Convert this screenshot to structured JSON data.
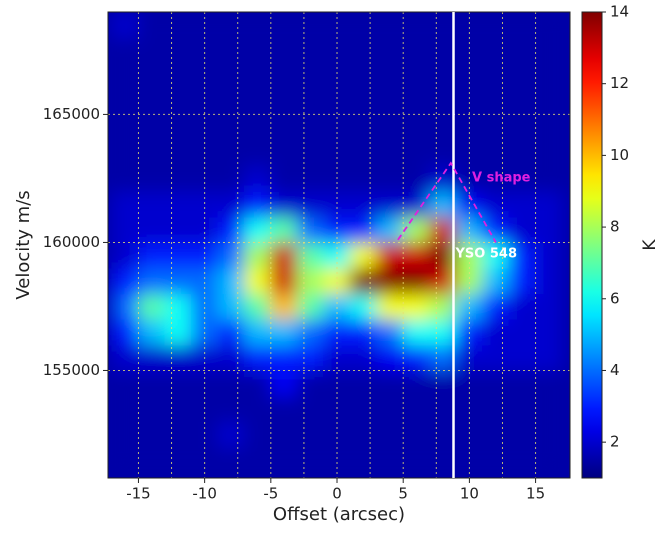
{
  "chart_data": {
    "type": "heatmap",
    "xlabel": "Offset (arcsec)",
    "ylabel": "Velocity m/s",
    "colorbar_label": "K",
    "xlim": [
      -17.3,
      17.6
    ],
    "ylim": [
      150800,
      169000
    ],
    "zlim": [
      1,
      14
    ],
    "xticks": [
      -15,
      -10,
      -5,
      0,
      5,
      10,
      15
    ],
    "x_minor_grid": [
      -12.5,
      -7.5,
      -2.5,
      2.5,
      7.5,
      12.5
    ],
    "yticks": [
      155000,
      160000,
      165000
    ],
    "zticks": [
      2,
      4,
      6,
      8,
      10,
      12,
      14
    ],
    "grid": true,
    "colormap": "jet",
    "x": [
      -16,
      -14,
      -12,
      -10,
      -8,
      -6,
      -4,
      -2,
      0,
      2,
      4,
      6,
      8,
      10,
      12,
      14,
      16
    ],
    "y": [
      151500,
      152500,
      153500,
      154500,
      155500,
      156500,
      157500,
      158500,
      159500,
      160500,
      161500,
      162500,
      163500,
      164500,
      165500,
      166500,
      167500,
      168500
    ],
    "z": [
      [
        1.5,
        1.5,
        1.5,
        1.5,
        1.5,
        1.5,
        1.5,
        1.5,
        1.5,
        1.5,
        1.5,
        1.5,
        1.5,
        1.5,
        1.5,
        1.5,
        1.5
      ],
      [
        1.5,
        1.5,
        1.5,
        1.5,
        2,
        1.5,
        1.5,
        1.5,
        1.5,
        1.5,
        1.5,
        1.5,
        1.5,
        1.5,
        1.5,
        1.5,
        1.5
      ],
      [
        1.5,
        1.5,
        1.5,
        1.5,
        1.5,
        1.5,
        1.5,
        1.5,
        1.5,
        1.5,
        1.5,
        1.5,
        1.5,
        1.5,
        1.5,
        1.5,
        1.5
      ],
      [
        1.5,
        1.5,
        1.5,
        1.5,
        1.5,
        1.5,
        2.5,
        1.5,
        1.5,
        1.5,
        1.5,
        1.5,
        1.5,
        1.5,
        1.5,
        1.5,
        1.5
      ],
      [
        2,
        2,
        2,
        2,
        2,
        3,
        3,
        3,
        2,
        2,
        2.5,
        3,
        4,
        2,
        2,
        2,
        2
      ],
      [
        3,
        5,
        6,
        4,
        3,
        5,
        5,
        4,
        3,
        3,
        4,
        6,
        6,
        3,
        2,
        2,
        2
      ],
      [
        4,
        7,
        6,
        4,
        5,
        7,
        10,
        7,
        5,
        6,
        9,
        9,
        8,
        5,
        3,
        2,
        2
      ],
      [
        3,
        4,
        4,
        4,
        5,
        9,
        13,
        8,
        9,
        14,
        14,
        14,
        13,
        8,
        5,
        3,
        2
      ],
      [
        2,
        3,
        3,
        3,
        4,
        8,
        13,
        7,
        6,
        9,
        13,
        13,
        14,
        8,
        6,
        3,
        2
      ],
      [
        2,
        2,
        2,
        2,
        3,
        6,
        7,
        4,
        3,
        3,
        5,
        8,
        13,
        5,
        3,
        2,
        2
      ],
      [
        2,
        2,
        2,
        2,
        2,
        3,
        2,
        2,
        2,
        2,
        2,
        2,
        5,
        2.5,
        2,
        2,
        2
      ],
      [
        1.5,
        1.5,
        1.5,
        1.5,
        1.5,
        2,
        1.5,
        1.5,
        1.5,
        1.5,
        1.5,
        1.5,
        2,
        1.5,
        1.5,
        1.5,
        1.5
      ],
      [
        1.5,
        1.5,
        1.5,
        1.5,
        1.5,
        1.5,
        1.5,
        1.5,
        1.5,
        1.5,
        1.5,
        1.5,
        1.5,
        1.5,
        1.5,
        1.5,
        1.5
      ],
      [
        1.5,
        1.5,
        1.5,
        1.5,
        1.5,
        1.5,
        1.5,
        1.5,
        1.5,
        1.5,
        1.5,
        1.5,
        1.5,
        1.5,
        1.5,
        1.5,
        1.5
      ],
      [
        1.5,
        1.5,
        1.5,
        1.5,
        1.5,
        1.5,
        1.5,
        1.5,
        1.5,
        1.5,
        1.5,
        1.5,
        1.5,
        1.5,
        1.5,
        1.5,
        1.5
      ],
      [
        1.5,
        1.5,
        1.5,
        1.5,
        1.5,
        1.5,
        1.5,
        1.5,
        1.5,
        1.5,
        1.5,
        1.5,
        1.5,
        1.5,
        1.5,
        1.5,
        1.5
      ],
      [
        1.5,
        1.5,
        1.5,
        1.5,
        1.5,
        1.5,
        1.5,
        1.5,
        1.5,
        1.5,
        1.5,
        1.5,
        1.5,
        1.5,
        1.5,
        1.5,
        1.5
      ],
      [
        2,
        1.5,
        1.5,
        1.5,
        1.5,
        1.5,
        1.5,
        1.5,
        1.5,
        1.5,
        1.5,
        1.5,
        1.5,
        1.5,
        1.5,
        1.5,
        1.5
      ]
    ],
    "source_offset": 8.8,
    "source_label": "YSO 548",
    "v_shape": {
      "label": "V shape",
      "x": [
        4.6,
        8.6,
        12
      ],
      "y": [
        160100,
        163100,
        160000
      ],
      "color": "#e020e0"
    }
  }
}
